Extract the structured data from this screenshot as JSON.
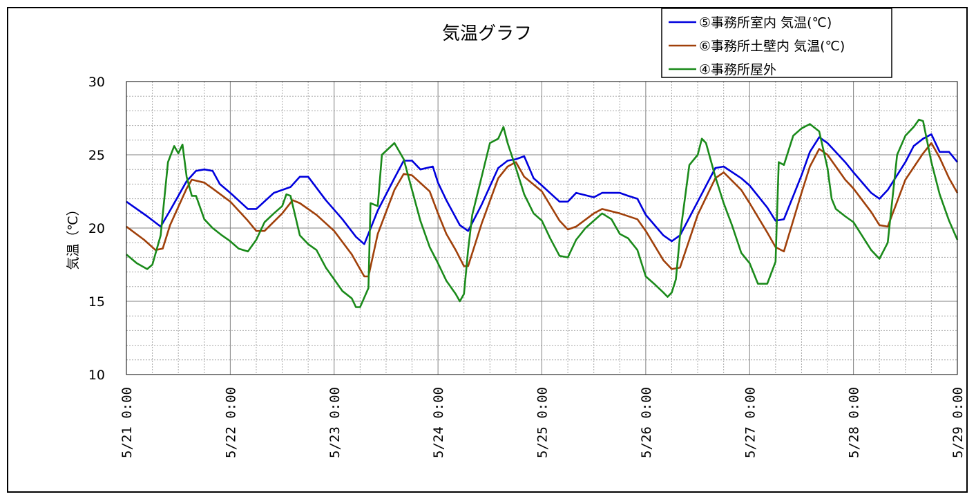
{
  "chart_data": {
    "type": "line",
    "title": "気温グラフ",
    "xlabel": "",
    "ylabel": "気温（℃）",
    "ylim": [
      10,
      30
    ],
    "y_ticks": [
      "10",
      "15",
      "20",
      "25",
      "30"
    ],
    "x_range": [
      "5/21 0:00",
      "5/29 0:00"
    ],
    "x_ticks": [
      "5/21 0:00",
      "5/22 0:00",
      "5/23 0:00",
      "5/24 0:00",
      "5/25 0:00",
      "5/26 0:00",
      "5/27 0:00",
      "5/28 0:00",
      "5/29 0:00"
    ],
    "grid": true,
    "legend_position": "top-right",
    "series": [
      {
        "name": "⑤事務所室内 気温(℃)",
        "color": "#0000dd",
        "points": [
          [
            0,
            21.8
          ],
          [
            0.2,
            20.8
          ],
          [
            0.33,
            20.1
          ],
          [
            0.42,
            21.2
          ],
          [
            0.58,
            23.2
          ],
          [
            0.67,
            23.9
          ],
          [
            0.75,
            24.0
          ],
          [
            0.83,
            23.9
          ],
          [
            0.9,
            23.0
          ],
          [
            1.0,
            22.4
          ],
          [
            1.17,
            21.3
          ],
          [
            1.25,
            21.3
          ],
          [
            1.42,
            22.4
          ],
          [
            1.58,
            22.8
          ],
          [
            1.67,
            23.5
          ],
          [
            1.75,
            23.5
          ],
          [
            1.92,
            21.9
          ],
          [
            2.08,
            20.6
          ],
          [
            2.21,
            19.4
          ],
          [
            2.29,
            18.9
          ],
          [
            2.42,
            21.2
          ],
          [
            2.58,
            23.4
          ],
          [
            2.67,
            24.6
          ],
          [
            2.75,
            24.6
          ],
          [
            2.83,
            24.0
          ],
          [
            2.95,
            24.2
          ],
          [
            3.0,
            23.1
          ],
          [
            3.08,
            21.9
          ],
          [
            3.21,
            20.2
          ],
          [
            3.29,
            19.8
          ],
          [
            3.42,
            21.6
          ],
          [
            3.58,
            24.1
          ],
          [
            3.67,
            24.6
          ],
          [
            3.75,
            24.7
          ],
          [
            3.83,
            24.9
          ],
          [
            3.92,
            23.4
          ],
          [
            4.0,
            22.9
          ],
          [
            4.17,
            21.8
          ],
          [
            4.25,
            21.8
          ],
          [
            4.33,
            22.4
          ],
          [
            4.5,
            22.1
          ],
          [
            4.58,
            22.4
          ],
          [
            4.75,
            22.4
          ],
          [
            4.83,
            22.2
          ],
          [
            4.92,
            22.0
          ],
          [
            5.0,
            20.9
          ],
          [
            5.17,
            19.5
          ],
          [
            5.25,
            19.1
          ],
          [
            5.33,
            19.5
          ],
          [
            5.5,
            21.8
          ],
          [
            5.67,
            24.1
          ],
          [
            5.75,
            24.2
          ],
          [
            5.92,
            23.4
          ],
          [
            6.0,
            22.9
          ],
          [
            6.17,
            21.4
          ],
          [
            6.25,
            20.5
          ],
          [
            6.33,
            20.6
          ],
          [
            6.5,
            23.6
          ],
          [
            6.58,
            25.2
          ],
          [
            6.67,
            26.2
          ],
          [
            6.75,
            25.8
          ],
          [
            6.92,
            24.5
          ],
          [
            7.0,
            23.8
          ],
          [
            7.17,
            22.4
          ],
          [
            7.25,
            22.0
          ],
          [
            7.33,
            22.6
          ],
          [
            7.5,
            24.5
          ],
          [
            7.58,
            25.6
          ],
          [
            7.67,
            26.1
          ],
          [
            7.75,
            26.4
          ],
          [
            7.83,
            25.2
          ],
          [
            7.92,
            25.2
          ],
          [
            8.0,
            24.5
          ]
        ]
      },
      {
        "name": "⑥事務所土壁内 気温(℃)",
        "color": "#a0400a",
        "points": [
          [
            0,
            20.1
          ],
          [
            0.17,
            19.2
          ],
          [
            0.28,
            18.5
          ],
          [
            0.35,
            18.6
          ],
          [
            0.42,
            20.2
          ],
          [
            0.58,
            22.7
          ],
          [
            0.63,
            23.3
          ],
          [
            0.75,
            23.1
          ],
          [
            0.83,
            22.7
          ],
          [
            1.0,
            21.8
          ],
          [
            1.17,
            20.5
          ],
          [
            1.25,
            19.8
          ],
          [
            1.33,
            19.8
          ],
          [
            1.5,
            21.0
          ],
          [
            1.6,
            21.9
          ],
          [
            1.67,
            21.7
          ],
          [
            1.83,
            20.9
          ],
          [
            2.0,
            19.8
          ],
          [
            2.17,
            18.2
          ],
          [
            2.25,
            17.2
          ],
          [
            2.29,
            16.7
          ],
          [
            2.33,
            16.7
          ],
          [
            2.42,
            19.6
          ],
          [
            2.58,
            22.6
          ],
          [
            2.67,
            23.7
          ],
          [
            2.75,
            23.6
          ],
          [
            2.92,
            22.5
          ],
          [
            3.0,
            21.0
          ],
          [
            3.08,
            19.6
          ],
          [
            3.17,
            18.5
          ],
          [
            3.25,
            17.4
          ],
          [
            3.29,
            17.4
          ],
          [
            3.42,
            20.3
          ],
          [
            3.58,
            23.4
          ],
          [
            3.67,
            24.2
          ],
          [
            3.75,
            24.5
          ],
          [
            3.83,
            23.5
          ],
          [
            4.0,
            22.5
          ],
          [
            4.17,
            20.5
          ],
          [
            4.25,
            19.9
          ],
          [
            4.33,
            20.1
          ],
          [
            4.5,
            21.0
          ],
          [
            4.58,
            21.3
          ],
          [
            4.75,
            21.0
          ],
          [
            4.92,
            20.6
          ],
          [
            5.0,
            19.8
          ],
          [
            5.17,
            17.8
          ],
          [
            5.25,
            17.2
          ],
          [
            5.33,
            17.3
          ],
          [
            5.5,
            20.9
          ],
          [
            5.67,
            23.4
          ],
          [
            5.75,
            23.8
          ],
          [
            5.92,
            22.6
          ],
          [
            6.0,
            21.7
          ],
          [
            6.17,
            19.7
          ],
          [
            6.25,
            18.7
          ],
          [
            6.33,
            18.4
          ],
          [
            6.5,
            22.4
          ],
          [
            6.58,
            24.2
          ],
          [
            6.67,
            25.4
          ],
          [
            6.75,
            25.0
          ],
          [
            6.92,
            23.3
          ],
          [
            7.0,
            22.7
          ],
          [
            7.17,
            21.1
          ],
          [
            7.25,
            20.2
          ],
          [
            7.33,
            20.1
          ],
          [
            7.5,
            23.3
          ],
          [
            7.67,
            25.1
          ],
          [
            7.75,
            25.8
          ],
          [
            7.83,
            24.8
          ],
          [
            7.92,
            23.4
          ],
          [
            8.0,
            22.4
          ]
        ]
      },
      {
        "name": "④事務所屋外",
        "color": "#1a8a1a",
        "points": [
          [
            0,
            18.2
          ],
          [
            0.1,
            17.6
          ],
          [
            0.2,
            17.2
          ],
          [
            0.25,
            17.5
          ],
          [
            0.33,
            19.5
          ],
          [
            0.4,
            24.5
          ],
          [
            0.46,
            25.6
          ],
          [
            0.5,
            25.1
          ],
          [
            0.54,
            25.7
          ],
          [
            0.58,
            23.5
          ],
          [
            0.63,
            22.2
          ],
          [
            0.67,
            22.2
          ],
          [
            0.75,
            20.6
          ],
          [
            0.83,
            20.0
          ],
          [
            0.92,
            19.5
          ],
          [
            1.0,
            19.1
          ],
          [
            1.08,
            18.6
          ],
          [
            1.17,
            18.4
          ],
          [
            1.25,
            19.2
          ],
          [
            1.33,
            20.4
          ],
          [
            1.42,
            21.0
          ],
          [
            1.5,
            21.5
          ],
          [
            1.54,
            22.3
          ],
          [
            1.58,
            22.2
          ],
          [
            1.67,
            19.5
          ],
          [
            1.75,
            18.9
          ],
          [
            1.83,
            18.5
          ],
          [
            1.92,
            17.3
          ],
          [
            2.0,
            16.5
          ],
          [
            2.08,
            15.7
          ],
          [
            2.17,
            15.2
          ],
          [
            2.21,
            14.6
          ],
          [
            2.25,
            14.6
          ],
          [
            2.33,
            15.9
          ],
          [
            2.35,
            21.7
          ],
          [
            2.42,
            21.5
          ],
          [
            2.46,
            25.0
          ],
          [
            2.58,
            25.8
          ],
          [
            2.67,
            24.7
          ],
          [
            2.75,
            22.6
          ],
          [
            2.83,
            20.5
          ],
          [
            2.92,
            18.7
          ],
          [
            3.0,
            17.6
          ],
          [
            3.08,
            16.4
          ],
          [
            3.17,
            15.5
          ],
          [
            3.21,
            15.0
          ],
          [
            3.25,
            15.5
          ],
          [
            3.29,
            18.5
          ],
          [
            3.33,
            20.9
          ],
          [
            3.42,
            23.5
          ],
          [
            3.5,
            25.8
          ],
          [
            3.58,
            26.1
          ],
          [
            3.63,
            26.9
          ],
          [
            3.67,
            25.8
          ],
          [
            3.75,
            24.1
          ],
          [
            3.83,
            22.3
          ],
          [
            3.92,
            21.0
          ],
          [
            4.0,
            20.5
          ],
          [
            4.08,
            19.3
          ],
          [
            4.17,
            18.1
          ],
          [
            4.25,
            18.0
          ],
          [
            4.33,
            19.2
          ],
          [
            4.42,
            20.0
          ],
          [
            4.5,
            20.5
          ],
          [
            4.58,
            21.0
          ],
          [
            4.67,
            20.6
          ],
          [
            4.75,
            19.6
          ],
          [
            4.83,
            19.3
          ],
          [
            4.92,
            18.5
          ],
          [
            5.0,
            16.7
          ],
          [
            5.08,
            16.2
          ],
          [
            5.17,
            15.6
          ],
          [
            5.21,
            15.3
          ],
          [
            5.25,
            15.6
          ],
          [
            5.29,
            16.5
          ],
          [
            5.33,
            19.5
          ],
          [
            5.42,
            24.3
          ],
          [
            5.5,
            25.0
          ],
          [
            5.54,
            26.1
          ],
          [
            5.58,
            25.8
          ],
          [
            5.67,
            23.5
          ],
          [
            5.75,
            21.7
          ],
          [
            5.83,
            20.2
          ],
          [
            5.92,
            18.3
          ],
          [
            6.0,
            17.6
          ],
          [
            6.08,
            16.2
          ],
          [
            6.17,
            16.2
          ],
          [
            6.25,
            17.7
          ],
          [
            6.28,
            24.5
          ],
          [
            6.33,
            24.3
          ],
          [
            6.42,
            26.3
          ],
          [
            6.5,
            26.8
          ],
          [
            6.58,
            27.1
          ],
          [
            6.67,
            26.6
          ],
          [
            6.75,
            24.1
          ],
          [
            6.79,
            22.0
          ],
          [
            6.83,
            21.3
          ],
          [
            6.92,
            20.8
          ],
          [
            7.0,
            20.4
          ],
          [
            7.08,
            19.5
          ],
          [
            7.17,
            18.5
          ],
          [
            7.25,
            17.9
          ],
          [
            7.33,
            19.0
          ],
          [
            7.42,
            25.0
          ],
          [
            7.5,
            26.3
          ],
          [
            7.58,
            26.9
          ],
          [
            7.63,
            27.4
          ],
          [
            7.67,
            27.3
          ],
          [
            7.75,
            24.5
          ],
          [
            7.83,
            22.3
          ],
          [
            7.92,
            20.5
          ],
          [
            8.0,
            19.2
          ]
        ]
      }
    ]
  }
}
